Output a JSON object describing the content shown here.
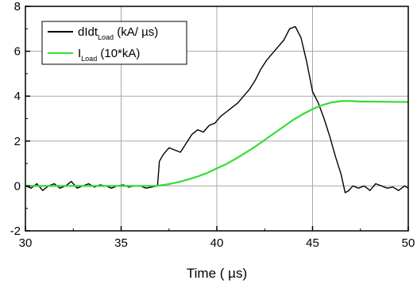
{
  "chart_data": {
    "type": "line",
    "xlabel": "Time ( µs)",
    "ylabel": "",
    "xlim": [
      30,
      50
    ],
    "ylim": [
      -2,
      8
    ],
    "x_ticks": [
      "30",
      "35",
      "40",
      "45",
      "50"
    ],
    "y_ticks": [
      "-2",
      "0",
      "2",
      "4",
      "6",
      "8"
    ],
    "grid": true,
    "legend": {
      "position": "top-left",
      "entries": [
        {
          "main": "dIdt",
          "sub": "Load",
          "suffix": " (kA/ µs)"
        },
        {
          "main": "I",
          "sub": "Load",
          "suffix": " (10*kA)"
        }
      ]
    },
    "series": [
      {
        "name": "dIdt Load (kA/ µs)",
        "color": "#000000",
        "x": [
          30.0,
          30.3,
          30.6,
          30.9,
          31.2,
          31.5,
          31.8,
          32.1,
          32.4,
          32.7,
          33.0,
          33.3,
          33.6,
          33.9,
          34.2,
          34.5,
          34.8,
          35.1,
          35.4,
          35.7,
          36.0,
          36.3,
          36.6,
          36.9,
          37.0,
          37.2,
          37.5,
          37.8,
          38.1,
          38.4,
          38.7,
          39.0,
          39.3,
          39.6,
          39.9,
          40.2,
          40.5,
          40.8,
          41.1,
          41.4,
          41.7,
          42.0,
          42.3,
          42.6,
          42.9,
          43.2,
          43.5,
          43.8,
          44.1,
          44.4,
          44.7,
          45.0,
          45.3,
          45.6,
          45.9,
          46.2,
          46.5,
          46.7,
          46.9,
          47.1,
          47.4,
          47.7,
          48.0,
          48.3,
          48.6,
          48.9,
          49.2,
          49.5,
          49.8,
          50.0
        ],
        "y": [
          0.0,
          -0.1,
          0.1,
          -0.2,
          0.0,
          0.1,
          -0.1,
          0.0,
          0.2,
          -0.1,
          0.0,
          0.1,
          -0.05,
          0.05,
          0.0,
          -0.1,
          0.0,
          0.05,
          -0.05,
          0.0,
          0.0,
          -0.1,
          -0.05,
          0.0,
          1.1,
          1.4,
          1.7,
          1.6,
          1.5,
          1.9,
          2.3,
          2.5,
          2.4,
          2.7,
          2.8,
          3.1,
          3.3,
          3.5,
          3.7,
          4.0,
          4.3,
          4.7,
          5.2,
          5.6,
          5.9,
          6.2,
          6.5,
          7.0,
          7.1,
          6.6,
          5.5,
          4.2,
          3.7,
          3.0,
          2.2,
          1.3,
          0.5,
          -0.3,
          -0.2,
          0.0,
          -0.1,
          0.0,
          -0.2,
          0.1,
          0.0,
          -0.1,
          -0.05,
          -0.2,
          0.0,
          -0.1
        ]
      },
      {
        "name": "I Load (10*kA)",
        "color": "#33dd33",
        "x": [
          30.0,
          31.0,
          32.0,
          33.0,
          34.0,
          35.0,
          36.0,
          36.8,
          37.0,
          37.5,
          38.0,
          38.5,
          39.0,
          39.5,
          40.0,
          40.5,
          41.0,
          41.5,
          42.0,
          42.5,
          43.0,
          43.5,
          44.0,
          44.5,
          45.0,
          45.5,
          46.0,
          46.5,
          47.0,
          47.5,
          48.0,
          49.0,
          50.0
        ],
        "y": [
          0.0,
          0.0,
          0.0,
          0.0,
          0.0,
          0.0,
          0.0,
          0.0,
          0.02,
          0.08,
          0.17,
          0.29,
          0.42,
          0.58,
          0.78,
          0.98,
          1.22,
          1.48,
          1.75,
          2.05,
          2.35,
          2.65,
          2.95,
          3.2,
          3.42,
          3.6,
          3.72,
          3.78,
          3.78,
          3.76,
          3.76,
          3.75,
          3.74
        ]
      }
    ]
  }
}
